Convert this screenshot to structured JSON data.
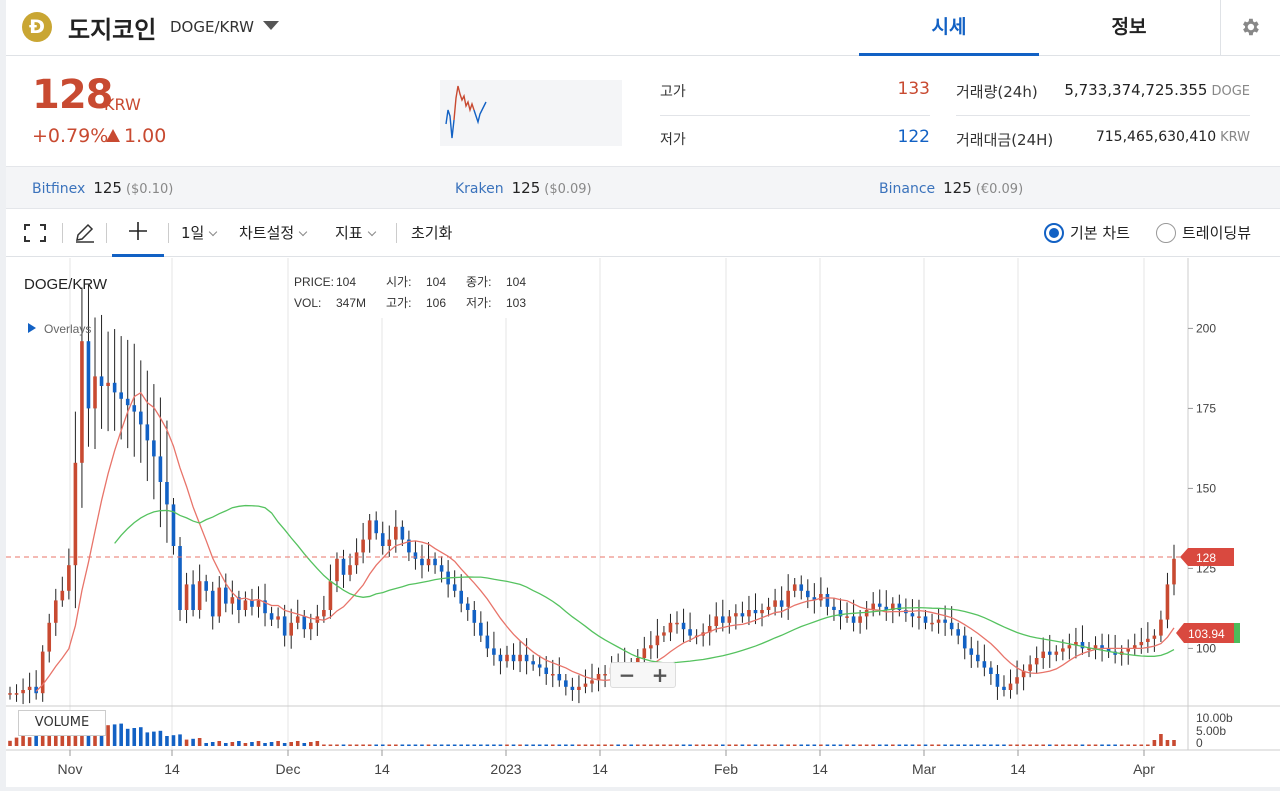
{
  "header": {
    "coin_logo_letter": "Đ",
    "coin_name": "도지코인",
    "pair": "DOGE/KRW",
    "tabs": [
      "시세",
      "정보"
    ],
    "icons": {
      "dropdown": "chevron-down-icon",
      "settings": "gear-icon"
    }
  },
  "price": {
    "current": "128",
    "unit": "KRW",
    "change_pct": "+0.79%",
    "change_abs": "1.00",
    "high_label": "고가",
    "high_value": "133",
    "low_label": "저가",
    "low_value": "122",
    "volume_label": "거래량(24h)",
    "volume_value": "5,733,374,725.355",
    "volume_unit": "DOGE",
    "turnover_label": "거래대금(24H)",
    "turnover_value": "715,465,630,410",
    "turnover_unit": "KRW",
    "colors": {
      "up": "#c84a31",
      "down": "#1261c4"
    }
  },
  "exchanges": [
    {
      "name": "Bitfinex",
      "price": "125",
      "diff": "($0.10)"
    },
    {
      "name": "Kraken",
      "price": "125",
      "diff": "($0.09)"
    },
    {
      "name": "Binance",
      "price": "125",
      "diff": "(€0.09)"
    }
  ],
  "toolbar": {
    "interval": "1일",
    "chart_settings": "차트설정",
    "indicators": "지표",
    "reset": "초기화",
    "basic_chart": "기본 차트",
    "trading_view": "트레이딩뷰",
    "icons": [
      "fullscreen-icon",
      "pencil-icon",
      "crosshair-icon"
    ]
  },
  "chart_data": {
    "type": "candlestick",
    "symbol": "DOGE/KRW",
    "overlays_label": "Overlays",
    "crosshair_info": {
      "price_label": "PRICE:",
      "price": "104",
      "open_label": "시가:",
      "open": "104",
      "close_label": "종가:",
      "close": "104",
      "vol_label": "VOL:",
      "vol": "347M",
      "high_label": "고가:",
      "high": "106",
      "low_label": "저가:",
      "low": "103"
    },
    "y_ticks": [
      "200",
      "175",
      "150",
      "125",
      "100"
    ],
    "ylim": [
      82,
      222
    ],
    "x_ticks": [
      "Nov",
      "14",
      "Dec",
      "14",
      "2023",
      "14",
      "Feb",
      "14",
      "Mar",
      "14",
      "Apr"
    ],
    "current_price_tag": "128",
    "ma_tag": "103.94",
    "volume_label": "VOLUME",
    "volume_ticks": [
      "10.00b",
      "5.00b",
      "0"
    ],
    "close_series": [
      86,
      86,
      87,
      88,
      86,
      99,
      108,
      115,
      118,
      126,
      158,
      196,
      175,
      185,
      182,
      183,
      180,
      178,
      176,
      174,
      170,
      165,
      160,
      152,
      145,
      132,
      112,
      120,
      112,
      121,
      118,
      110,
      119,
      114,
      116,
      112,
      115,
      113,
      115,
      111,
      109,
      110,
      104,
      108,
      110,
      106,
      108,
      110,
      112,
      121,
      128,
      123,
      126,
      130,
      134,
      140,
      136,
      132,
      134,
      138,
      134,
      130,
      128,
      126,
      128,
      126,
      124,
      120,
      118,
      114,
      112,
      108,
      104,
      100,
      98,
      96,
      98,
      96,
      98,
      96,
      95,
      94,
      92,
      92,
      90,
      88,
      87,
      88,
      89,
      90,
      92,
      92,
      94,
      93,
      95,
      93,
      97,
      100,
      101,
      104,
      105,
      108,
      108,
      106,
      104,
      104,
      105,
      107,
      110,
      108,
      110,
      111,
      110,
      112,
      111,
      112,
      113,
      115,
      113,
      118,
      120,
      118,
      116,
      115,
      117,
      113,
      112,
      110,
      110,
      108,
      110,
      112,
      114,
      113,
      112,
      114,
      112,
      111,
      110,
      110,
      108,
      108,
      109,
      108,
      106,
      104,
      100,
      98,
      96,
      94,
      92,
      88,
      87,
      89,
      91,
      93,
      95,
      97,
      99,
      98,
      99,
      100,
      101,
      102,
      100,
      100,
      101,
      100,
      99,
      98,
      99,
      100,
      101,
      102,
      103,
      104,
      109,
      120,
      128
    ]
  }
}
